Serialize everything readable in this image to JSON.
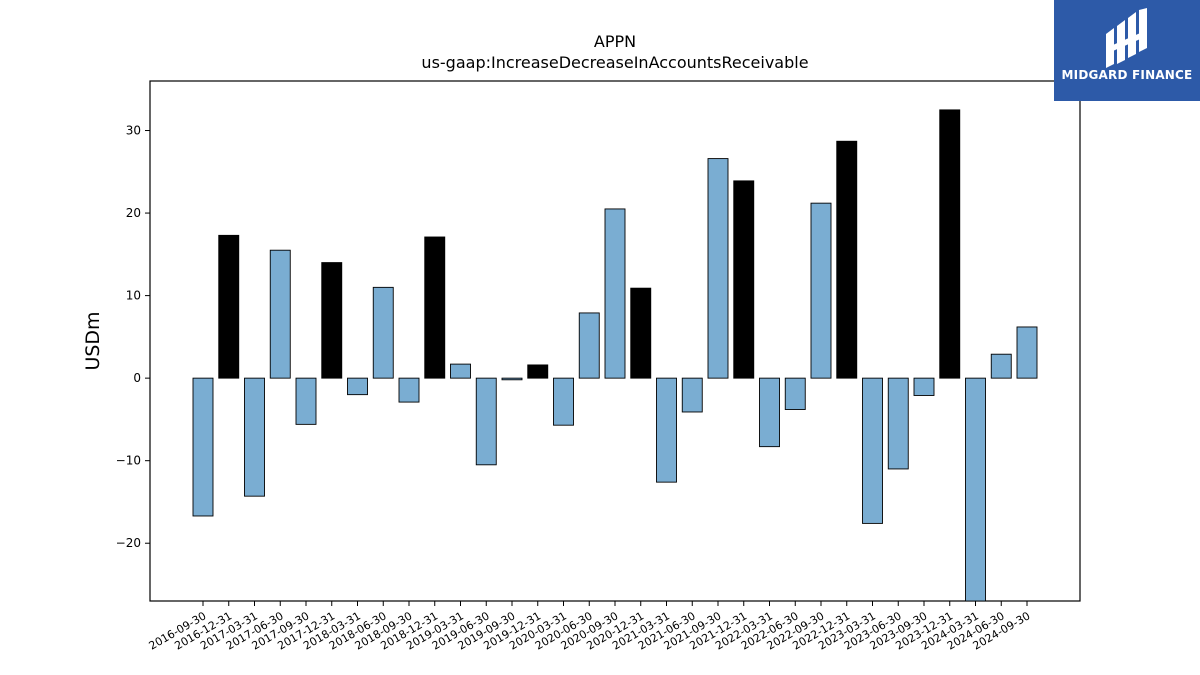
{
  "chart_data": {
    "type": "bar",
    "title": "APPN",
    "subtitle": "us-gaap:IncreaseDecreaseInAccountsReceivable",
    "xlabel": "",
    "ylabel": "USDm",
    "ylim": [
      -27,
      36
    ],
    "yticks": [
      -20,
      -10,
      0,
      10,
      20,
      30
    ],
    "grid": false,
    "categories": [
      "2016-09-30",
      "2016-12-31",
      "2017-03-31",
      "2017-06-30",
      "2017-09-30",
      "2017-12-31",
      "2018-03-31",
      "2018-06-30",
      "2018-09-30",
      "2018-12-31",
      "2019-03-31",
      "2019-06-30",
      "2019-09-30",
      "2019-12-31",
      "2020-03-31",
      "2020-06-30",
      "2020-09-30",
      "2020-12-31",
      "2021-03-31",
      "2021-06-30",
      "2021-09-30",
      "2021-12-31",
      "2022-03-31",
      "2022-06-30",
      "2022-09-30",
      "2022-12-31",
      "2023-03-31",
      "2023-06-30",
      "2023-09-30",
      "2023-12-31",
      "2024-03-31",
      "2024-06-30",
      "2024-09-30"
    ],
    "values": [
      -16.7,
      17.3,
      -14.3,
      15.5,
      -5.6,
      14.0,
      -2.0,
      11.0,
      -2.9,
      17.1,
      1.7,
      -10.5,
      -0.2,
      1.6,
      -5.7,
      7.9,
      20.5,
      10.9,
      -12.6,
      -4.1,
      26.6,
      23.9,
      -8.3,
      -3.8,
      21.2,
      28.7,
      -17.6,
      -11.0,
      -2.1,
      32.5,
      -27.0,
      2.9,
      6.2
    ],
    "q4_highlight": [
      false,
      true,
      false,
      false,
      false,
      true,
      false,
      false,
      false,
      true,
      false,
      false,
      false,
      true,
      false,
      false,
      false,
      true,
      false,
      false,
      false,
      true,
      false,
      false,
      false,
      true,
      false,
      false,
      false,
      true,
      false,
      false,
      false
    ],
    "colors": {
      "regular": "#7aadd2",
      "q4": "#000000",
      "edge": "#000000"
    }
  },
  "logo": {
    "text": "MIDGARD FINANCE",
    "background": "#2d5aa8"
  }
}
